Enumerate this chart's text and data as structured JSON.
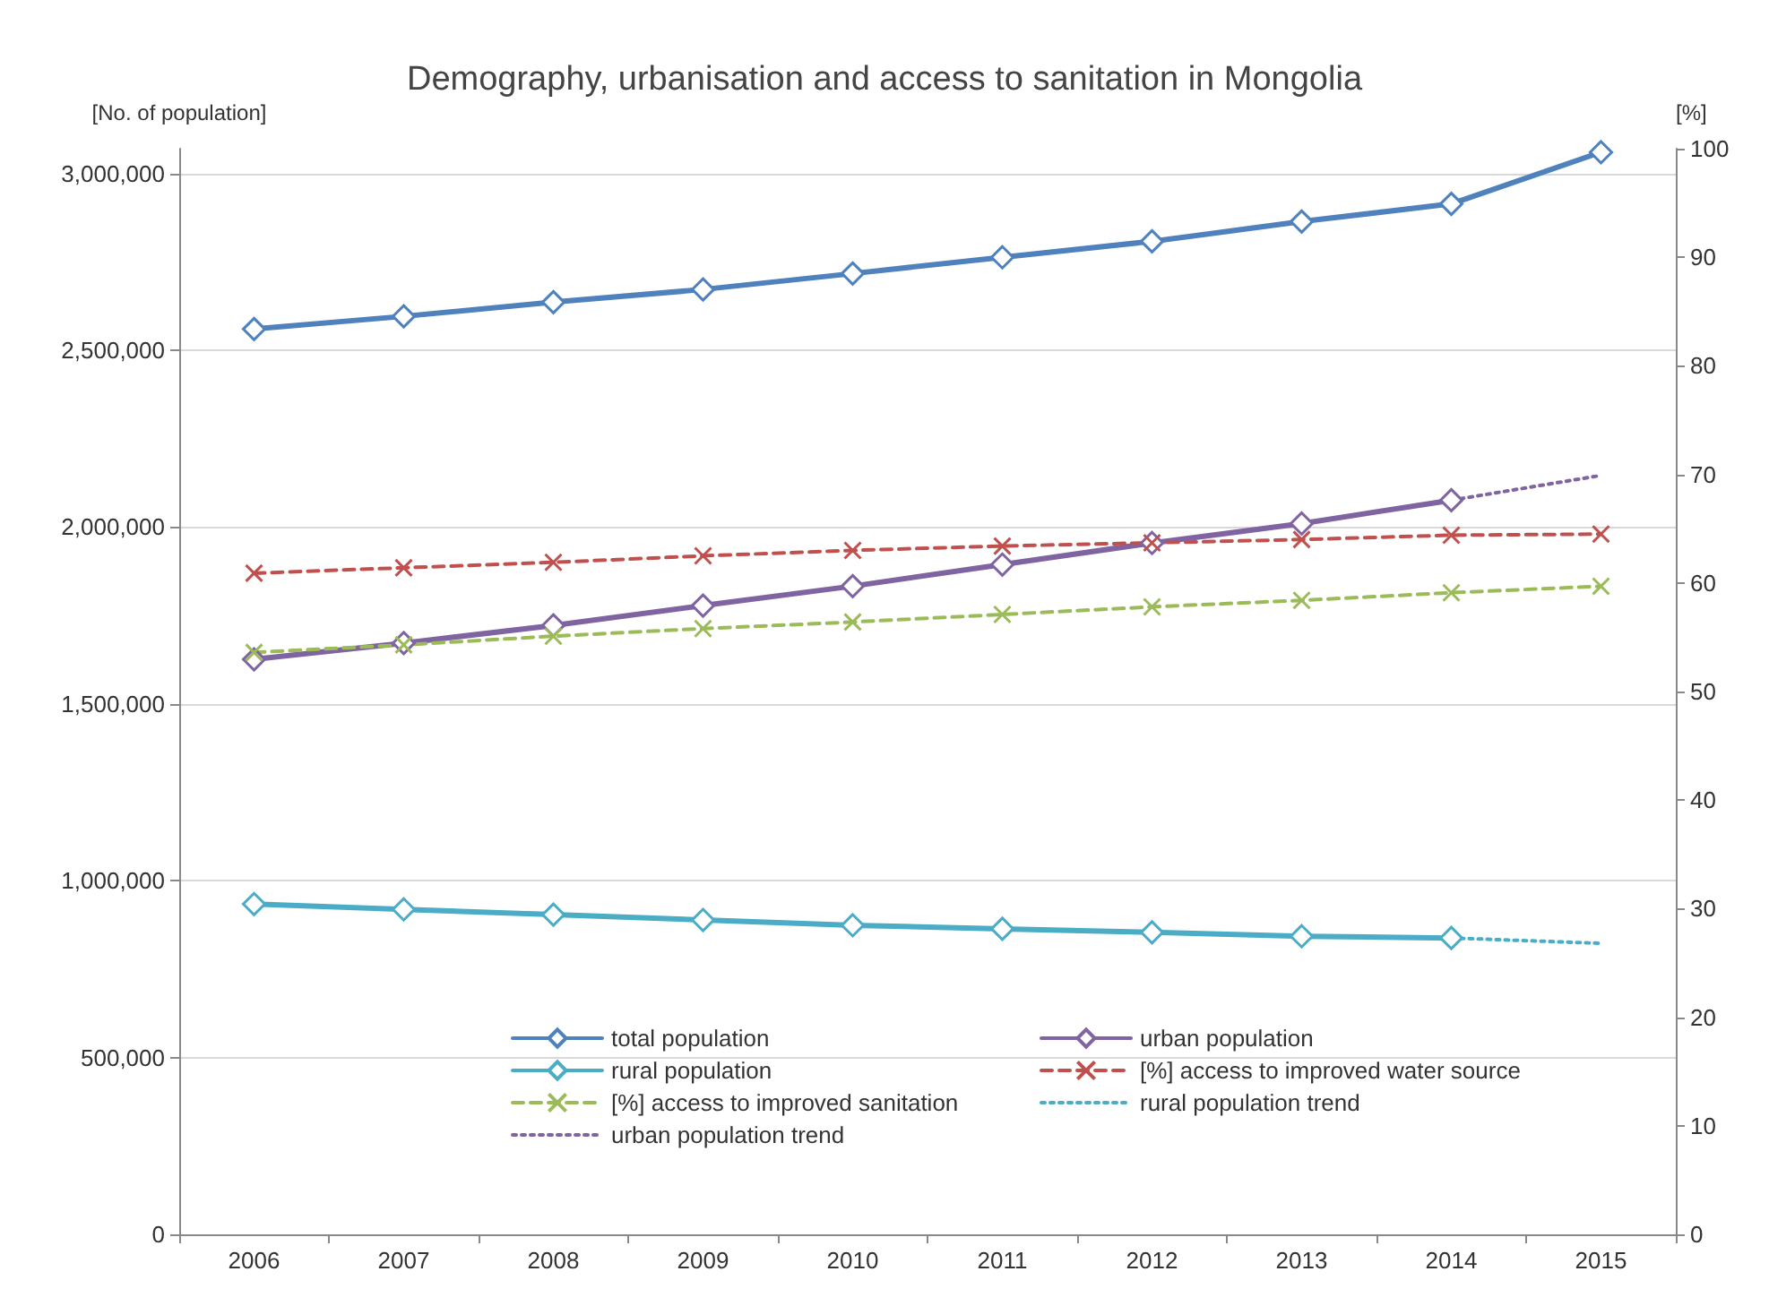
{
  "chart_data": {
    "type": "line",
    "title": "Demography, urbanisation and access to sanitation in Mongolia",
    "ylabel": "[No. of population]",
    "y2label": "[%]",
    "categories": [
      "2006",
      "2007",
      "2008",
      "2009",
      "2010",
      "2011",
      "2012",
      "2013",
      "2014",
      "2015"
    ],
    "ylim": [
      0,
      3070000
    ],
    "yticks": [
      {
        "value": 0,
        "label": "0"
      },
      {
        "value": 500000,
        "label": "500,000"
      },
      {
        "value": 1000000,
        "label": "1,000,000"
      },
      {
        "value": 1500000,
        "label": "1,500,000"
      },
      {
        "value": 2000000,
        "label": "2,000,000"
      },
      {
        "value": 2500000,
        "label": "2,500,000"
      },
      {
        "value": 3000000,
        "label": "3,000,000"
      }
    ],
    "y2lim": [
      0,
      100
    ],
    "y2ticks": [
      0,
      10,
      20,
      30,
      40,
      50,
      60,
      70,
      80,
      90,
      100
    ],
    "grid": "y",
    "legend": "bottom",
    "series": [
      {
        "name": "total population",
        "color": "#4f81bd",
        "marker": "diamond",
        "line_style": "solid",
        "values": [
          2560000,
          2596000,
          2636000,
          2672000,
          2717000,
          2763000,
          2808000,
          2864000,
          2914000,
          3060000
        ]
      },
      {
        "name": "urban population",
        "color": "#8064a2",
        "marker": "diamond",
        "line_style": "solid",
        "values": [
          1626000,
          1672000,
          1722000,
          1778000,
          1833000,
          1894000,
          1955000,
          2010000,
          2076000,
          null
        ]
      },
      {
        "name": "rural population",
        "color": "#4bacc6",
        "marker": "diamond",
        "line_style": "solid",
        "values": [
          934000,
          919000,
          904000,
          889000,
          874000,
          864000,
          854000,
          843000,
          838000,
          null
        ]
      },
      {
        "name": "[%] access to improved water source",
        "color": "#c0504d",
        "marker": "cross",
        "line_style": "dashed",
        "axis": "y2",
        "values": [
          60.9,
          61.4,
          61.9,
          62.5,
          63.0,
          63.4,
          63.7,
          64.0,
          64.4,
          64.5
        ]
      },
      {
        "name": "[%] access to improved sanitation",
        "color": "#9bbb59",
        "marker": "cross",
        "line_style": "dashed",
        "axis": "y2",
        "values": [
          53.6,
          54.3,
          55.1,
          55.8,
          56.4,
          57.1,
          57.8,
          58.4,
          59.1,
          59.7
        ]
      },
      {
        "name": "rural population trend",
        "color": "#4bacc6",
        "marker": "none",
        "line_style": "dotted",
        "values": [
          null,
          null,
          null,
          null,
          null,
          null,
          null,
          null,
          838000,
          823000
        ]
      },
      {
        "name": "urban population trend",
        "color": "#8064a2",
        "marker": "none",
        "line_style": "dotted",
        "values": [
          null,
          null,
          null,
          null,
          null,
          null,
          null,
          null,
          2076000,
          2146000
        ]
      }
    ]
  }
}
